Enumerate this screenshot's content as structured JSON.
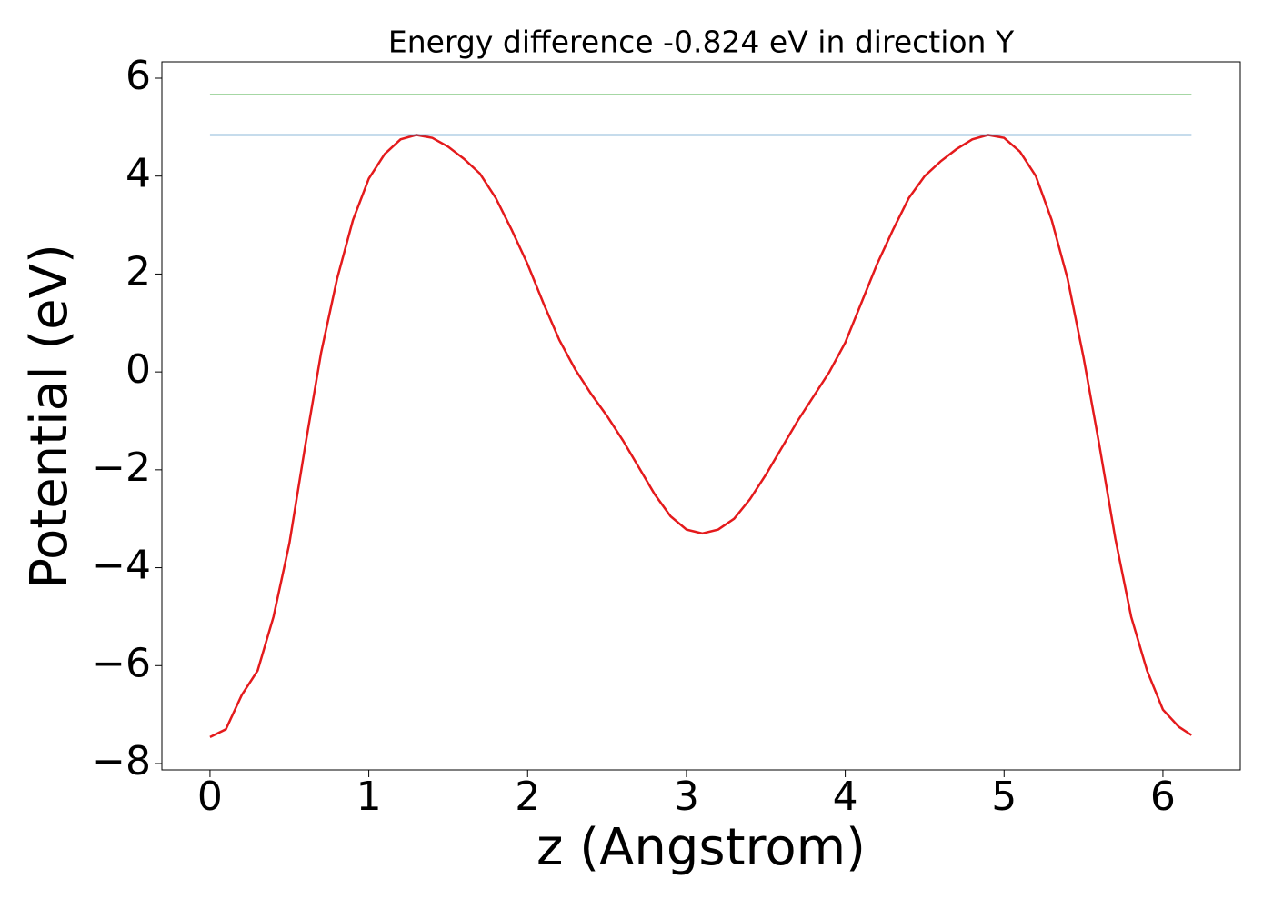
{
  "chart_data": {
    "type": "line",
    "title": "Energy difference -0.824 eV in direction Y",
    "x_label": "z (Angstrom)",
    "y_label": "Potential (eV)",
    "xlim": [
      -0.303,
      6.487
    ],
    "ylim": [
      -8.13,
      6.334
    ],
    "xticks": [
      0,
      1,
      2,
      3,
      4,
      5,
      6
    ],
    "yticks": [
      {
        "value": -8,
        "label": "−8"
      },
      {
        "value": -6,
        "label": "−6"
      },
      {
        "value": -4,
        "label": "−4"
      },
      {
        "value": -2,
        "label": "−2"
      },
      0,
      2,
      4,
      6
    ],
    "series": [
      {
        "color": "#e41a1c",
        "x": [
          0,
          0.1,
          0.2,
          0.3,
          0.4,
          0.5,
          0.6,
          0.7,
          0.8,
          0.9,
          1.0,
          1.1,
          1.2,
          1.3,
          1.4,
          1.5,
          1.6,
          1.7,
          1.8,
          1.9,
          2.0,
          2.1,
          2.2,
          2.3,
          2.4,
          2.5,
          2.6,
          2.7,
          2.8,
          2.9,
          3.0,
          3.1,
          3.2,
          3.3,
          3.4,
          3.5,
          3.6,
          3.7,
          3.8,
          3.9,
          4.0,
          4.1,
          4.2,
          4.3,
          4.4,
          4.5,
          4.6,
          4.7,
          4.8,
          4.9,
          5.0,
          5.1,
          5.2,
          5.3,
          5.4,
          5.5,
          5.6,
          5.7,
          5.8,
          5.9,
          6.0,
          6.1,
          6.18
        ],
        "values": [
          -7.46,
          -7.3,
          -6.6,
          -6.1,
          -5.0,
          -3.5,
          -1.5,
          0.4,
          1.9,
          3.1,
          3.95,
          4.45,
          4.75,
          4.84,
          4.78,
          4.6,
          4.35,
          4.05,
          3.55,
          2.9,
          2.2,
          1.4,
          0.65,
          0.05,
          -0.45,
          -0.9,
          -1.4,
          -1.95,
          -2.5,
          -2.95,
          -3.22,
          -3.3,
          -3.22,
          -3.0,
          -2.6,
          -2.1,
          -1.55,
          -1.0,
          -0.5,
          0.0,
          0.6,
          1.4,
          2.2,
          2.9,
          3.55,
          4.0,
          4.3,
          4.55,
          4.75,
          4.84,
          4.78,
          4.5,
          4.0,
          3.1,
          1.9,
          0.3,
          -1.5,
          -3.4,
          -5.0,
          -6.1,
          -6.9,
          -7.25,
          -7.42
        ]
      },
      {
        "color": "#1f77b4",
        "x": [
          0,
          6.18
        ],
        "values": [
          4.84,
          4.84
        ]
      },
      {
        "color": "#4daf4a",
        "x": [
          0,
          6.18
        ],
        "values": [
          5.66,
          5.66
        ]
      }
    ]
  }
}
